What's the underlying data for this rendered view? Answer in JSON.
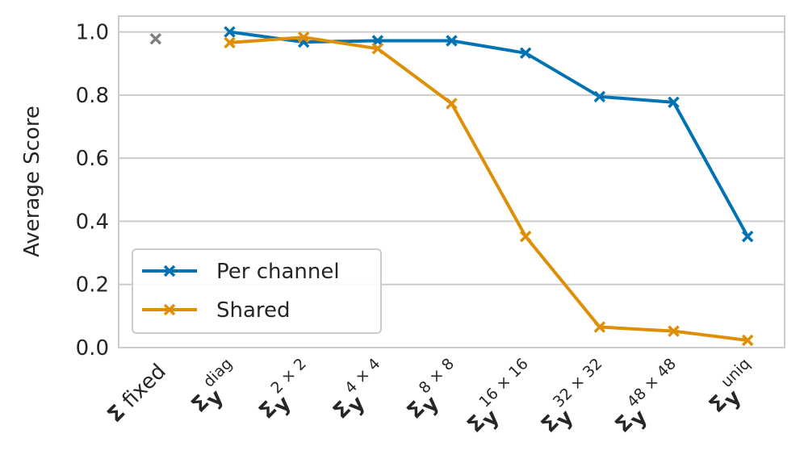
{
  "chart_data": {
    "type": "line",
    "y_label": "Average Score",
    "categories": [
      {
        "symbol": "Σ",
        "text": "fixed"
      },
      {
        "symbol": "Σ",
        "sub": "y",
        "sup": "diag"
      },
      {
        "symbol": "Σ",
        "sub": "y",
        "sup": "2 × 2"
      },
      {
        "symbol": "Σ",
        "sub": "y",
        "sup": "4 × 4"
      },
      {
        "symbol": "Σ",
        "sub": "y",
        "sup": "8 × 8"
      },
      {
        "symbol": "Σ",
        "sub": "y",
        "sup": "16 × 16"
      },
      {
        "symbol": "Σ",
        "sub": "y",
        "sup": "32 × 32"
      },
      {
        "symbol": "Σ",
        "sub": "y",
        "sup": "48 × 48"
      },
      {
        "symbol": "Σ",
        "sub": "y",
        "sup": "uniq"
      }
    ],
    "series": [
      {
        "name": "Per channel",
        "color": "#0173b2",
        "values": [
          null,
          1.0,
          0.968,
          0.972,
          0.972,
          0.933,
          0.795,
          0.777,
          0.352
        ]
      },
      {
        "name": "Shared",
        "color": "#de8f05",
        "values": [
          null,
          0.966,
          0.983,
          0.947,
          0.773,
          0.352,
          0.065,
          0.052,
          0.023
        ]
      }
    ],
    "reference": {
      "color": "#7f7f7f",
      "values": [
        0.978,
        null,
        null,
        null,
        null,
        null,
        null,
        null,
        null
      ]
    },
    "ylim": [
      0,
      1.05
    ],
    "yticks": [
      {
        "value": 0,
        "label": "0.0"
      },
      {
        "value": 0.2,
        "label": "0.2"
      },
      {
        "value": 0.4,
        "label": "0.4"
      },
      {
        "value": 0.6,
        "label": "0.6"
      },
      {
        "value": 0.8,
        "label": "0.8"
      },
      {
        "value": 1.0,
        "label": "1.0"
      }
    ],
    "grid": true,
    "legend": "lower left"
  }
}
